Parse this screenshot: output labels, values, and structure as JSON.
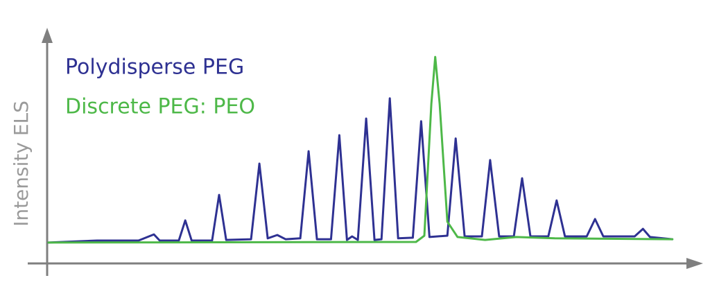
{
  "chart_data": {
    "type": "line",
    "y_label": "Intensity ELS",
    "xlim": [
      0,
      100
    ],
    "ylim": [
      0,
      100
    ],
    "grid": false,
    "legend": "upper left",
    "series": [
      {
        "name": "Polydisperse PEG",
        "color": "#2e3192",
        "x": [
          0.2,
          7.8,
          14.3,
          16.7,
          17.6,
          20.6,
          21.6,
          22.6,
          25.8,
          26.9,
          28.0,
          31.9,
          33.2,
          34.5,
          36.0,
          37.3,
          39.6,
          40.9,
          42.2,
          44.4,
          45.7,
          46.9,
          47.7,
          48.6,
          49.9,
          51.2,
          52.3,
          53.6,
          54.9,
          57.2,
          58.5,
          59.8,
          62.6,
          63.9,
          65.3,
          68.0,
          69.3,
          70.7,
          73.0,
          74.3,
          75.6,
          78.4,
          79.7,
          81.0,
          84.4,
          85.7,
          87.0,
          91.9,
          93.2,
          94.3,
          97.8
        ],
        "values": [
          9.4,
          10.3,
          10.3,
          13.1,
          10.3,
          10.3,
          19.4,
          10.3,
          10.3,
          30.9,
          10.6,
          10.9,
          45.0,
          11.3,
          12.8,
          10.9,
          11.3,
          50.6,
          10.9,
          10.9,
          57.8,
          10.6,
          12.2,
          10.6,
          65.3,
          10.6,
          10.9,
          74.4,
          11.3,
          11.6,
          64.1,
          11.9,
          12.5,
          56.3,
          12.2,
          12.2,
          46.6,
          12.2,
          12.2,
          38.4,
          12.2,
          12.2,
          28.4,
          12.2,
          12.2,
          20.0,
          12.2,
          12.2,
          15.6,
          11.9,
          10.9
        ]
      },
      {
        "name": "Discrete PEG: PEO",
        "color": "#4db848",
        "x": [
          0.2,
          57.7,
          59.0,
          60.1,
          60.7,
          61.4,
          62.6,
          64.2,
          68.5,
          73.4,
          79.4,
          97.8
        ],
        "values": [
          9.4,
          9.7,
          12.5,
          71.9,
          93.1,
          71.9,
          18.8,
          11.9,
          10.6,
          11.9,
          11.3,
          10.9
        ]
      }
    ]
  }
}
